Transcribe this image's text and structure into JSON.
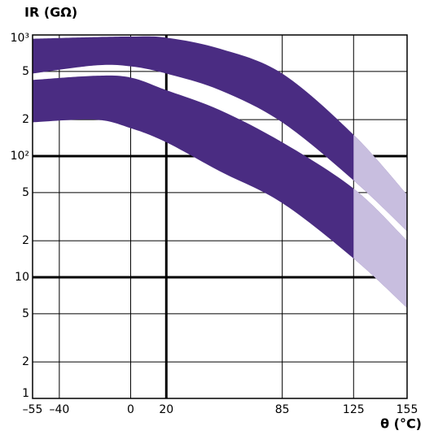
{
  "chart_data": {
    "type": "band",
    "y_label": "IR (GΩ)",
    "x_label": "θ (°C)",
    "x": [
      -55,
      -20,
      0,
      20,
      50,
      85,
      125,
      155
    ],
    "series": [
      {
        "upper": [
          930,
          960,
          970,
          950,
          770,
          480,
          150,
          48
        ],
        "lower": [
          480,
          560,
          550,
          480,
          350,
          190,
          63,
          24
        ],
        "color": "#4a2c82",
        "light_color": "#c8bedf"
      },
      {
        "upper": [
          425,
          460,
          445,
          350,
          240,
          130,
          54,
          20
        ],
        "lower": [
          190,
          200,
          170,
          130,
          75,
          41,
          14.3,
          5.6
        ],
        "color": "#4a2c82",
        "light_color": "#c8bedf"
      }
    ],
    "shade_from": 125,
    "xlim": [
      -55,
      155
    ],
    "ylim": [
      1,
      1000
    ],
    "log_y": true,
    "xticks": [
      {
        "value": -55,
        "label": "–55"
      },
      {
        "value": -40,
        "label": "–40"
      },
      0,
      20,
      85,
      125,
      155
    ],
    "yticks": [
      1,
      2,
      5,
      10,
      {
        "value": 20,
        "label": "2"
      },
      {
        "value": 50,
        "label": "5"
      },
      {
        "value": 100,
        "label": "10²"
      },
      {
        "value": 200,
        "label": "2"
      },
      {
        "value": 500,
        "label": "5"
      },
      {
        "value": 1000,
        "label": "10³"
      }
    ],
    "thick_xticks": [
      20
    ],
    "thick_yticks": [
      10,
      100
    ],
    "grid": true
  }
}
